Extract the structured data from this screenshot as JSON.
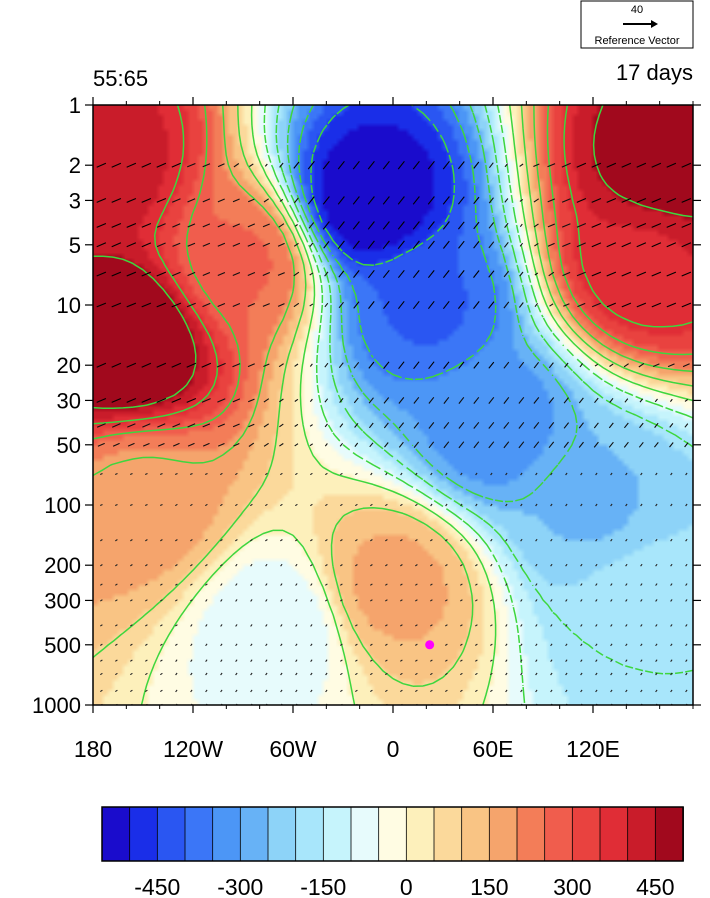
{
  "figure": {
    "left_label": "55:65",
    "right_label": "17 days",
    "reference_vector": {
      "magnitude": "40",
      "label": "Reference Vector"
    },
    "marker_color": "#ff00ff"
  },
  "chart_data": {
    "type": "heatmap",
    "title": "",
    "xlabel": "",
    "ylabel": "",
    "x_axis": {
      "range": [
        -180,
        180
      ],
      "ticks": [
        {
          "value": -180,
          "label": "180"
        },
        {
          "value": -120,
          "label": "120W"
        },
        {
          "value": -60,
          "label": "60W"
        },
        {
          "value": 0,
          "label": "0"
        },
        {
          "value": 60,
          "label": "60E"
        },
        {
          "value": 120,
          "label": "120E"
        }
      ]
    },
    "y_axis": {
      "scale": "log",
      "reversed": true,
      "range": [
        1000,
        1
      ],
      "ticks": [
        {
          "value": 1,
          "label": "1"
        },
        {
          "value": 2,
          "label": "2"
        },
        {
          "value": 3,
          "label": "3"
        },
        {
          "value": 5,
          "label": "5"
        },
        {
          "value": 10,
          "label": "10"
        },
        {
          "value": 20,
          "label": "20"
        },
        {
          "value": 30,
          "label": "30"
        },
        {
          "value": 50,
          "label": "50"
        },
        {
          "value": 100,
          "label": "100"
        },
        {
          "value": 200,
          "label": "200"
        },
        {
          "value": 300,
          "label": "300"
        },
        {
          "value": 500,
          "label": "500"
        },
        {
          "value": 1000,
          "label": "1000"
        }
      ]
    },
    "shading_centers": [
      {
        "x": -160,
        "y": 15,
        "value": 560
      },
      {
        "x": -175,
        "y": 2,
        "value": 450
      },
      {
        "x": 165,
        "y": 2,
        "value": 520
      },
      {
        "x": 150,
        "y": 6,
        "value": 420
      },
      {
        "x": -15,
        "y": 3,
        "value": -520
      },
      {
        "x": 20,
        "y": 10,
        "value": -380
      },
      {
        "x": 60,
        "y": 40,
        "value": -300
      },
      {
        "x": 120,
        "y": 100,
        "value": -230
      },
      {
        "x": 150,
        "y": 300,
        "value": -150
      },
      {
        "x": -90,
        "y": 6,
        "value": 280
      },
      {
        "x": -150,
        "y": 100,
        "value": 200
      },
      {
        "x": 0,
        "y": 250,
        "value": 190
      },
      {
        "x": -70,
        "y": 400,
        "value": -60
      }
    ],
    "contour_levels": [
      -420,
      -330,
      -240,
      -150,
      -60,
      30,
      120,
      210,
      300,
      390,
      480
    ],
    "vector_rows": [
      2,
      3,
      4,
      5,
      7,
      10,
      20,
      30,
      40,
      50,
      70,
      100,
      150,
      200,
      250,
      300,
      400,
      500,
      600,
      700,
      850,
      1000
    ],
    "marker": {
      "x": 22,
      "y": 500
    },
    "colorbar": {
      "colors": [
        "#1a0ccc",
        "#1a2ee8",
        "#2a56f2",
        "#3b76f7",
        "#4c96f6",
        "#67b2f6",
        "#8dd3f8",
        "#a8e6fb",
        "#c6f4fc",
        "#e7fbfc",
        "#fffce3",
        "#fdf0bb",
        "#fbd99b",
        "#f9c484",
        "#f5a46c",
        "#f37d58",
        "#f05d4d",
        "#e9423f",
        "#e02d36",
        "#c91c2a",
        "#a1091d"
      ],
      "tick_labels": [
        "-450",
        "-300",
        "-150",
        "0",
        "150",
        "300",
        "450"
      ]
    }
  }
}
